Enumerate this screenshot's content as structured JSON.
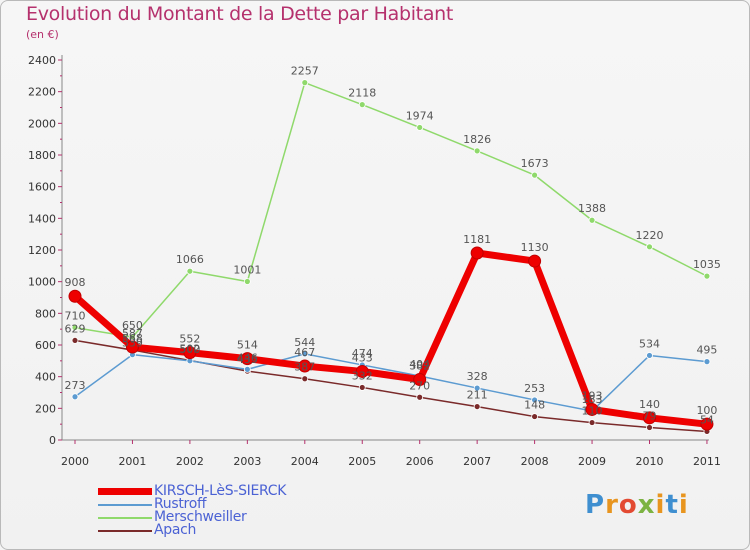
{
  "title": "Evolution du Montant de la Dette par Habitant",
  "subtitle": "(en €)",
  "brand": {
    "letters": [
      "P",
      "r",
      "o",
      "x",
      "i",
      "t",
      "i"
    ],
    "colors": [
      "#3f8fd0",
      "#e8951f",
      "#e34a32",
      "#7cb342",
      "#e8951f",
      "#3f8fd0",
      "#e8951f"
    ]
  },
  "chart_data": {
    "type": "line",
    "title": "Evolution du Montant de la Dette par Habitant",
    "ylabel": "(en €)",
    "xlabel": "",
    "categories": [
      "2000",
      "2001",
      "2002",
      "2003",
      "2004",
      "2005",
      "2006",
      "2007",
      "2008",
      "2009",
      "2010",
      "2011"
    ],
    "ylim": [
      0,
      2400
    ],
    "yticks": [
      0,
      200,
      400,
      600,
      800,
      1000,
      1200,
      1400,
      1600,
      1800,
      2000,
      2200,
      2400
    ],
    "grid": false,
    "series": [
      {
        "name": "Apach",
        "color": "#7a2a2a",
        "values": [
          629,
          568,
          502,
          435,
          387,
          332,
          270,
          211,
          148,
          110,
          79,
          54
        ]
      },
      {
        "name": "Rustroff",
        "color": "#5c9bd1",
        "values": [
          273,
          539,
          500,
          446,
          544,
          474,
          404,
          328,
          253,
          183,
          534,
          495
        ]
      },
      {
        "name": "Merschweiller",
        "color": "#8fd96b",
        "values": [
          710,
          650,
          1066,
          1001,
          2257,
          2118,
          1974,
          1826,
          1673,
          1388,
          1220,
          1035
        ]
      },
      {
        "name": "KIRSCH-LèS-SIERCK",
        "color": "#ee0000",
        "values": [
          908,
          587,
          552,
          514,
          467,
          433,
          382,
          1181,
          1130,
          193,
          140,
          100
        ]
      }
    ],
    "legend_order": [
      "KIRSCH-LèS-SIERCK",
      "Rustroff",
      "Merschweiller",
      "Apach"
    ]
  }
}
